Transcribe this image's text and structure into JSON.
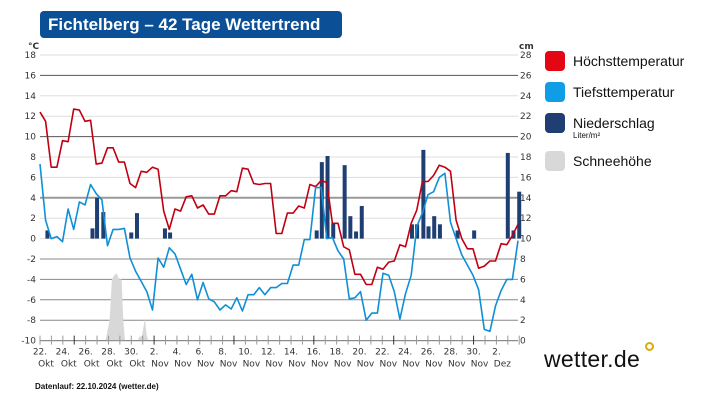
{
  "title": "Fichtelberg – 42 Tage Wettertrend",
  "footnote": "Datenlauf: 22.10.2024 (wetter.de)",
  "logo": "wetter.de",
  "legend": [
    {
      "label": "Höchsttemperatur",
      "color": "#e30613"
    },
    {
      "label": "Tiefsttemperatur",
      "color": "#0f9de8"
    },
    {
      "label": "Niederschlag",
      "sub": "Liter/m²",
      "color": "#1f3f73"
    },
    {
      "label": "Schneehöhe",
      "color": "#d8d8d8"
    }
  ],
  "chart_data": {
    "type": "line",
    "title": "Fichtelberg – 42 Tage Wettertrend",
    "ylabel_left": "°C",
    "ylabel_right": "cm",
    "ylim_left": [
      -10,
      18
    ],
    "ylim_right": [
      0,
      28
    ],
    "yticks_left": [
      "18",
      "16",
      "14",
      "12",
      "10",
      "8",
      "6",
      "4",
      "2",
      "0",
      "-2",
      "-4",
      "-6",
      "-8",
      "-10"
    ],
    "yticks_right": [
      "28",
      "26",
      "24",
      "22",
      "20",
      "18",
      "16",
      "14",
      "12",
      "10",
      "8",
      "6",
      "4",
      "2",
      "0"
    ],
    "xticks": [
      {
        "day": "22.",
        "month": "Okt"
      },
      {
        "day": "24.",
        "month": "Okt"
      },
      {
        "day": "26.",
        "month": "Okt"
      },
      {
        "day": "28.",
        "month": "Okt"
      },
      {
        "day": "30.",
        "month": "Okt"
      },
      {
        "day": "2.",
        "month": "Nov"
      },
      {
        "day": "4.",
        "month": "Nov"
      },
      {
        "day": "6.",
        "month": "Nov"
      },
      {
        "day": "8.",
        "month": "Nov"
      },
      {
        "day": "10.",
        "month": "Nov"
      },
      {
        "day": "12.",
        "month": "Nov"
      },
      {
        "day": "14.",
        "month": "Nov"
      },
      {
        "day": "16.",
        "month": "Nov"
      },
      {
        "day": "18.",
        "month": "Nov"
      },
      {
        "day": "20.",
        "month": "Nov"
      },
      {
        "day": "22.",
        "month": "Nov"
      },
      {
        "day": "24.",
        "month": "Nov"
      },
      {
        "day": "26.",
        "month": "Nov"
      },
      {
        "day": "28.",
        "month": "Nov"
      },
      {
        "day": "30.",
        "month": "Nov"
      },
      {
        "day": "2.",
        "month": "Dez"
      }
    ],
    "x_unit": "days since 22.10., 12-hourly samples",
    "series": [
      {
        "name": "Höchsttemperatur",
        "color": "#c00012",
        "values": [
          12.4,
          11.5,
          7,
          7,
          9.6,
          9.5,
          12.7,
          12.6,
          11.5,
          11.6,
          7.3,
          7.4,
          8.9,
          8.9,
          7.5,
          7.5,
          5.4,
          5,
          6.6,
          6.5,
          7,
          6.8,
          2.7,
          0.9,
          2.9,
          2.7,
          4.1,
          4.2,
          3,
          3.3,
          2.4,
          2.4,
          4.2,
          4.2,
          4.7,
          4.6,
          6.9,
          6.8,
          5.4,
          5.3,
          5.4,
          5.4,
          0.5,
          0.5,
          2.5,
          2.5,
          3.2,
          3,
          5.3,
          5.1,
          5.7,
          5.5,
          1.5,
          1.5,
          -0.8,
          -1.1,
          -3.5,
          -3.5,
          -4.5,
          -4.5,
          -2.8,
          -3,
          -2.3,
          -2.2,
          -0.6,
          -0.8,
          1.5,
          2.8,
          5.6,
          5.6,
          6.2,
          7.2,
          7,
          6.6,
          1.8,
          0,
          -1,
          -1,
          -2.9,
          -2.7,
          -2.2,
          -2.2,
          -0.5,
          -0.6,
          0.3,
          1.4
        ]
      },
      {
        "name": "Tiefsttemperatur",
        "color": "#0f8fd6",
        "values": [
          7.3,
          1.8,
          0,
          0.2,
          -0.3,
          2.9,
          0.9,
          3.6,
          3.3,
          5.3,
          4.4,
          3.8,
          -0.7,
          0.9,
          0.9,
          1,
          -1.9,
          -3.2,
          -4.2,
          -5.2,
          -7,
          -1.9,
          -2.8,
          -0.9,
          -1.5,
          -3,
          -4.5,
          -3.5,
          -6,
          -4.3,
          -5.9,
          -6.2,
          -7,
          -6.5,
          -6.9,
          -5.8,
          -7.1,
          -5.5,
          -5.5,
          -4.8,
          -5.5,
          -4.8,
          -4.8,
          -4.4,
          -4.4,
          -2.6,
          -2.6,
          -0.1,
          -0.1,
          5,
          5,
          0,
          0.1,
          -1.2,
          -2,
          -5.9,
          -5.8,
          -5.2,
          -8,
          -7.3,
          -7.3,
          -3.4,
          -3.6,
          -5.2,
          -7.9,
          -5.4,
          -3.6,
          1.2,
          2.5,
          4.3,
          4.6,
          6,
          6.4,
          1.6,
          0,
          -1.6,
          -2.6,
          -3.6,
          -5,
          -8.9,
          -9.1,
          -6.6,
          -5.1,
          -4,
          -4,
          -0.2
        ]
      }
    ],
    "precipitation": {
      "name": "Niederschlag",
      "unit": "Liter/m²",
      "color": "#1f3f73",
      "days": [
        0.65,
        4.6,
        5.0,
        5.55,
        8.0,
        8.5,
        10.95,
        11.4,
        24.25,
        24.7,
        25.2,
        25.7,
        26.7,
        27.2,
        27.7,
        28.2,
        32.6,
        33.05,
        33.6,
        34.05,
        34.55,
        35.05,
        36.6,
        38.05,
        41,
        41.5,
        42
      ],
      "values": [
        0.8,
        1,
        4,
        2.6,
        0.6,
        2.5,
        1,
        0.6,
        0.8,
        7.5,
        8.1,
        1.5,
        7.2,
        2.2,
        0.7,
        3.2,
        1.4,
        1.4,
        8.7,
        1.2,
        2.2,
        1.4,
        0.8,
        0.8,
        8.4,
        0.8,
        4.6
      ]
    },
    "snow_depth": {
      "name": "Schneehöhe",
      "unit": "cm",
      "color": "#d8d8d8",
      "days": [
        5.7,
        5.8,
        6.1,
        6.3,
        6.5,
        6.7,
        6.95,
        7.15,
        7.3,
        7.45,
        8.6,
        8.65,
        8.95,
        9.2,
        9.35,
        9.5
      ],
      "values": [
        0,
        0.3,
        2,
        6,
        6.4,
        6.6,
        6,
        6,
        2,
        0,
        0,
        0.3,
        0.5,
        2.2,
        0.5,
        0
      ]
    }
  }
}
